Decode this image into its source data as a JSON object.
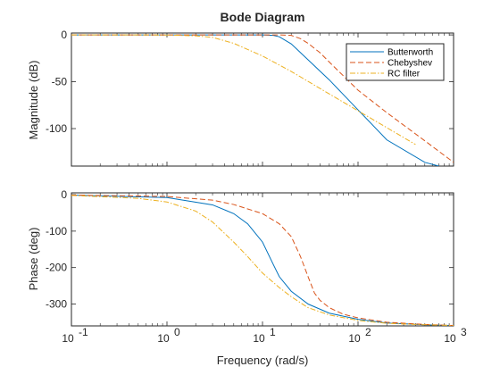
{
  "chart_data": {
    "type": "line",
    "title": "Bode Diagram",
    "xlabel": "Frequency (rad/s)",
    "xscale": "log",
    "xlim": [
      0.1,
      1000
    ],
    "x_tick_labels": [
      {
        "base": "10",
        "exp": "-1"
      },
      {
        "base": "10",
        "exp": "0"
      },
      {
        "base": "10",
        "exp": "1"
      },
      {
        "base": "10",
        "exp": "2"
      },
      {
        "base": "10",
        "exp": "3"
      }
    ],
    "legend_location": "top-right of magnitude plot",
    "series": [
      {
        "name": "Butterworth",
        "color": "#0072BD",
        "style": "solid"
      },
      {
        "name": "Chebyshev",
        "color": "#D95319",
        "style": "dashed"
      },
      {
        "name": "RC filter",
        "color": "#EDB120",
        "style": "dashdot"
      }
    ],
    "subplots": [
      {
        "ylabel": "Magnitude (dB)",
        "ylim": [
          -140,
          2
        ],
        "y_ticks": [
          "0",
          "-50",
          "-100"
        ],
        "y_tick_values": [
          0,
          -50,
          -100
        ],
        "grid": false,
        "series_data": [
          {
            "name": "Butterworth",
            "x": [
              0.1,
              1,
              5,
              10,
              13,
              15,
              20,
              30,
              50,
              100,
              200,
              500,
              700
            ],
            "y": [
              0,
              0,
              0,
              0,
              -0.5,
              -2,
              -9.6,
              -26.6,
              -48,
              -80,
              -112,
              -136,
              -140
            ]
          },
          {
            "name": "Chebyshev",
            "x": [
              0.1,
              1,
              10,
              15,
              20,
              25,
              30,
              40,
              50,
              100,
              200,
              500,
              1000
            ],
            "y": [
              0,
              0,
              0,
              0,
              -0.5,
              -4,
              -9,
              -19,
              -29,
              -59,
              -83,
              -113,
              -136
            ]
          },
          {
            "name": "RC filter",
            "x": [
              0.1,
              1,
              2,
              3,
              5,
              10,
              20,
              50,
              100,
              200,
              400
            ],
            "y": [
              0,
              -0.1,
              -1,
              -2.6,
              -9,
              -22.5,
              -39,
              -63,
              -81,
              -99,
              -117
            ]
          }
        ]
      },
      {
        "ylabel": "Phase (deg)",
        "ylim": [
          -360,
          5
        ],
        "y_ticks": [
          "0",
          "-100",
          "-200",
          "-300"
        ],
        "y_tick_values": [
          0,
          -100,
          -200,
          -300
        ],
        "grid": false,
        "series_data": [
          {
            "name": "Butterworth",
            "x": [
              0.1,
              1,
              3,
              5,
              7,
              10,
              13,
              15,
              20,
              30,
              50,
              100,
              200,
              500,
              1000
            ],
            "y": [
              -1,
              -8,
              -28,
              -52,
              -80,
              -130,
              -192,
              -225,
              -265,
              -300,
              -325,
              -342,
              -352,
              -357,
              -359
            ]
          },
          {
            "name": "Chebyshev",
            "x": [
              0.1,
              1,
              3,
              5,
              10,
              15,
              20,
              25,
              30,
              35,
              40,
              50,
              70,
              100,
              200,
              500,
              1000
            ],
            "y": [
              -1,
              -5,
              -15,
              -27,
              -52,
              -80,
              -115,
              -170,
              -225,
              -270,
              -290,
              -310,
              -328,
              -338,
              -350,
              -356,
              -359
            ]
          },
          {
            "name": "RC filter",
            "x": [
              0.1,
              0.5,
              1,
              2,
              3,
              5,
              7,
              10,
              15,
              20,
              30,
              50,
              100,
              200,
              500,
              1000
            ],
            "y": [
              -2,
              -10,
              -20,
              -45,
              -75,
              -130,
              -170,
              -215,
              -255,
              -280,
              -310,
              -330,
              -345,
              -353,
              -357,
              -359
            ]
          }
        ]
      }
    ]
  }
}
